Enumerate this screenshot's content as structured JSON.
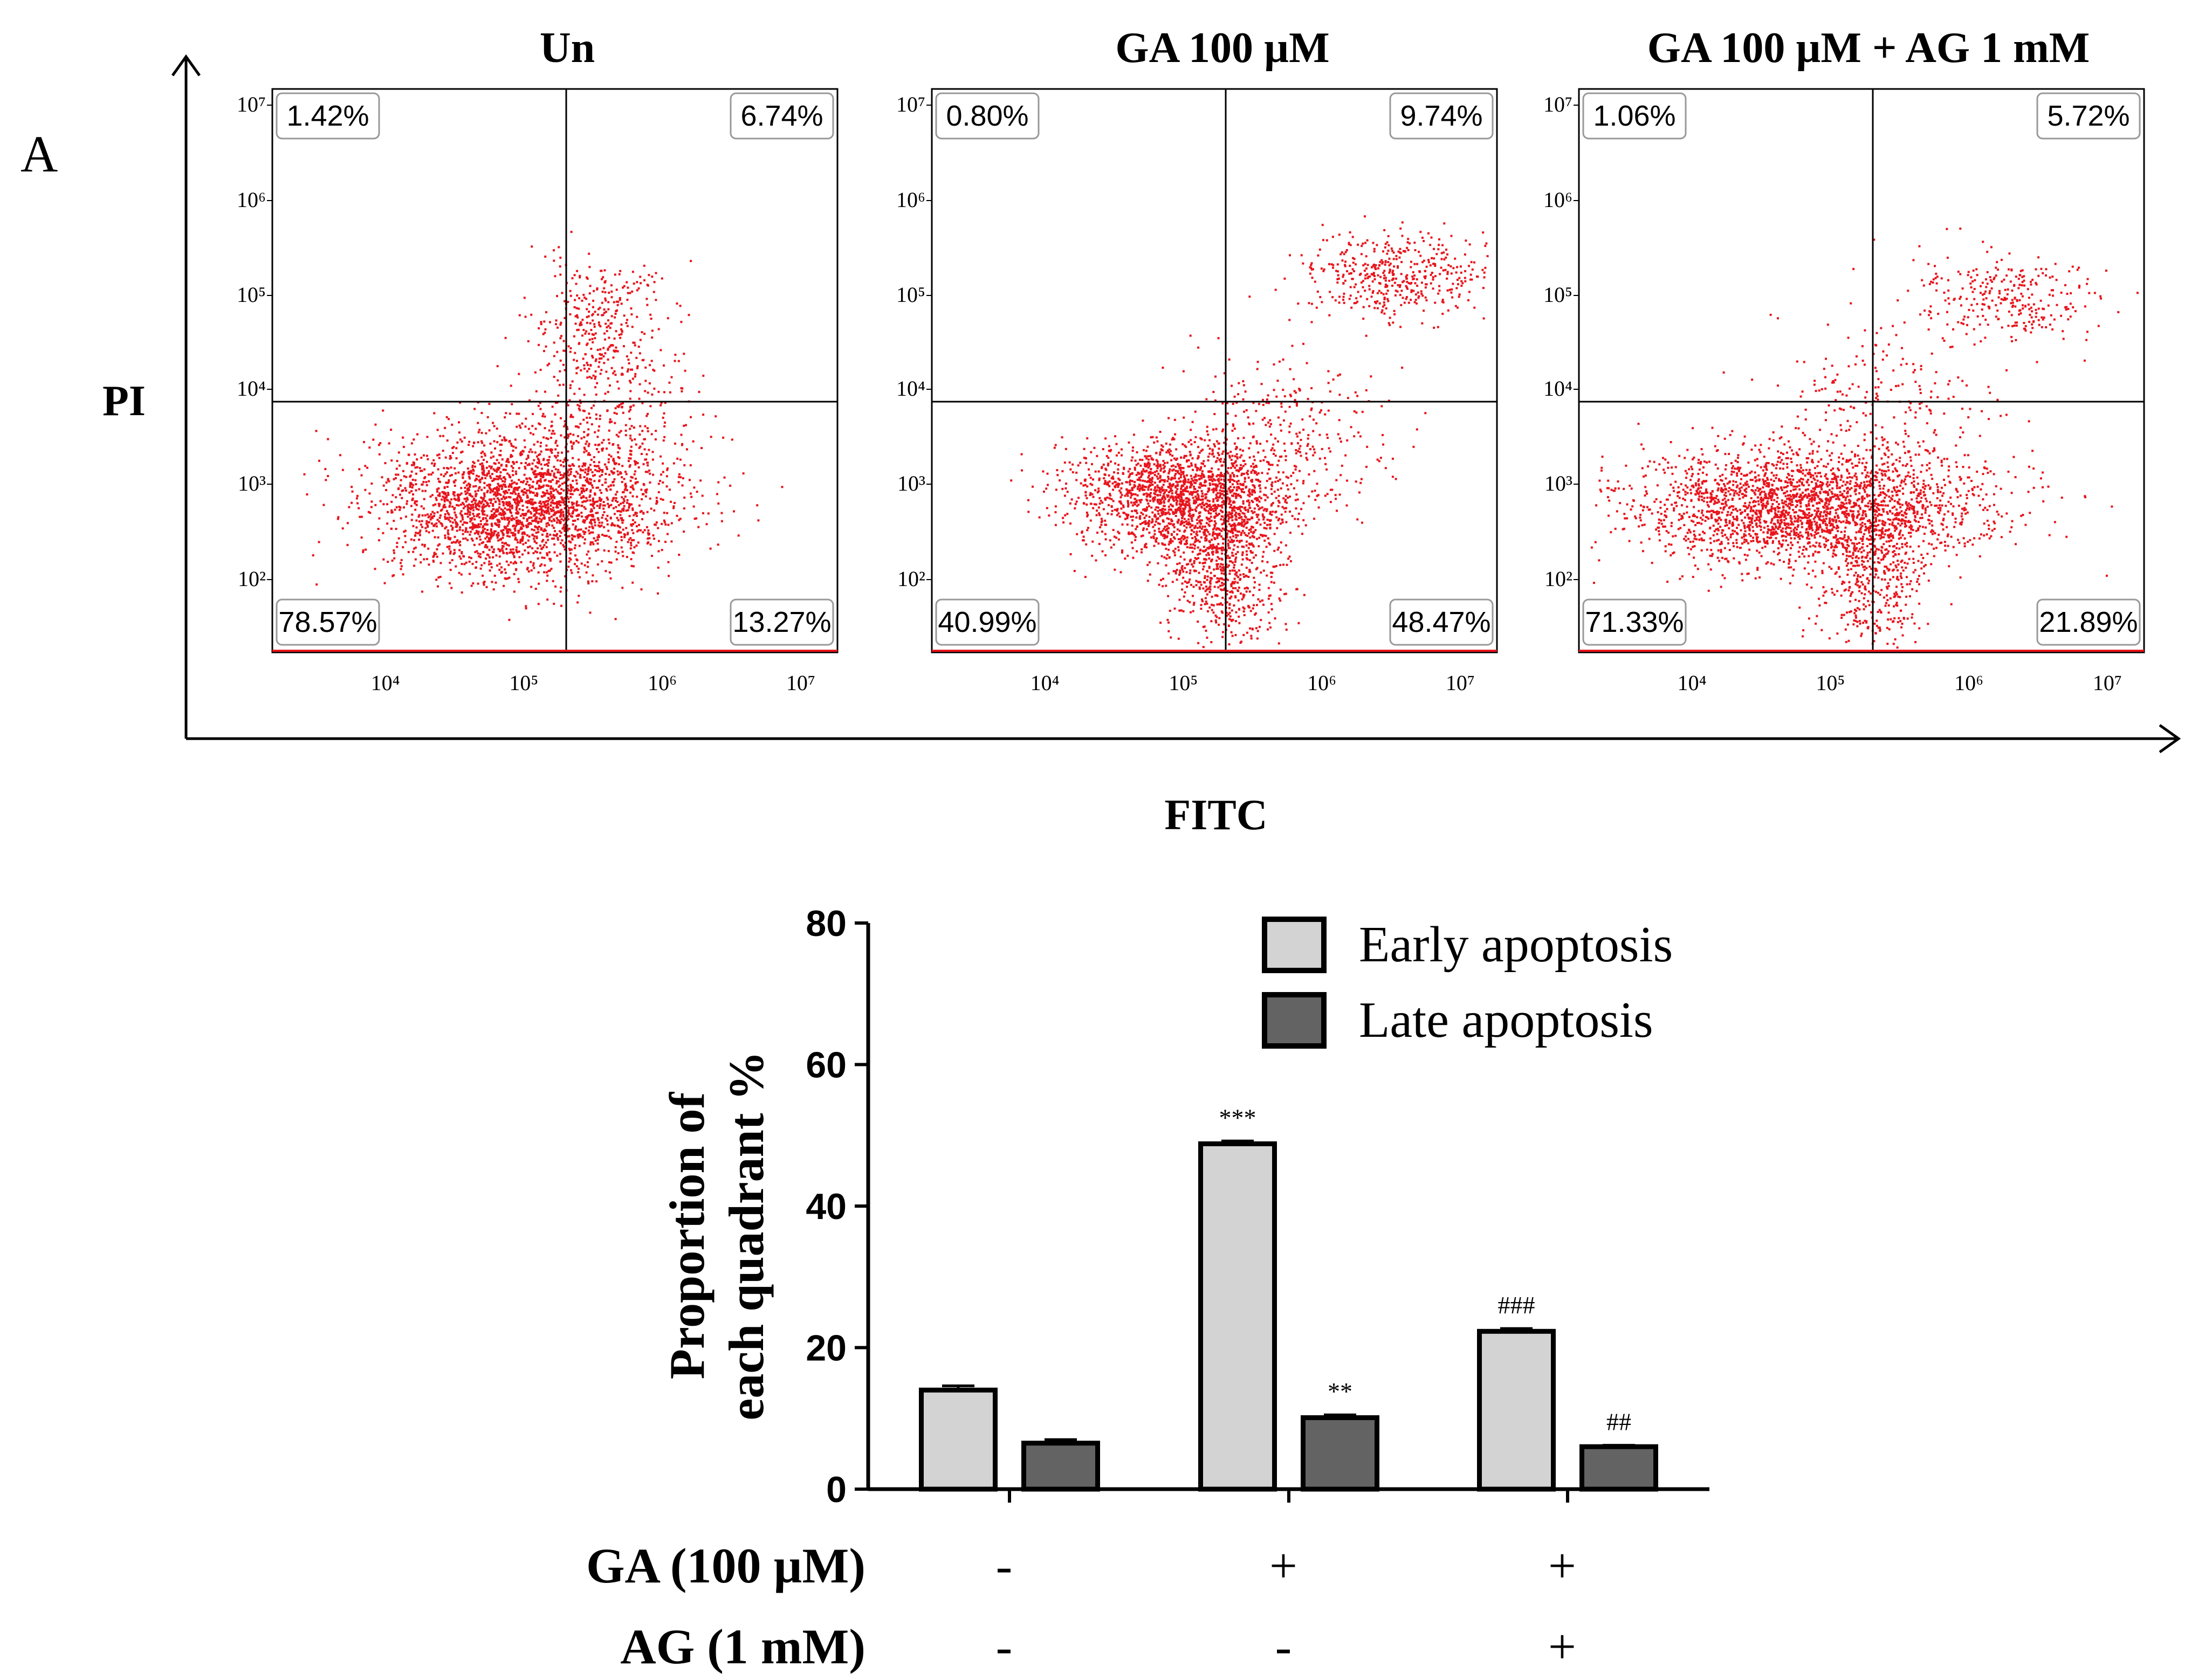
{
  "panel_letter": "A",
  "flow": {
    "y_axis_label": "PI",
    "x_axis_label": "FITC",
    "tick_labels": [
      "10⁴",
      "10⁵",
      "10⁶",
      "10⁷"
    ],
    "y_tick_labels": [
      "10²",
      "10³",
      "10⁴",
      "10⁵",
      "10⁶",
      "10⁷"
    ],
    "dot_color": "#e8141c",
    "panels": [
      {
        "title": "Un",
        "quadrants": {
          "ul": "1.42%",
          "ur": "6.74%",
          "ll": "78.57%",
          "lr": "13.27%"
        }
      },
      {
        "title": "GA 100 µM",
        "quadrants": {
          "ul": "0.80%",
          "ur": "9.74%",
          "ll": "40.99%",
          "lr": "48.47%"
        }
      },
      {
        "title": "GA 100 µM + AG 1 mM",
        "quadrants": {
          "ul": "1.06%",
          "ur": "5.72%",
          "ll": "71.33%",
          "lr": "21.89%"
        }
      }
    ]
  },
  "chart_data": {
    "type": "bar",
    "title": "",
    "xlabel": "",
    "ylabel": "Proportion of each quadrant %",
    "ylabel_lines": [
      "Proportion of",
      "each quadrant %"
    ],
    "ylim": [
      0,
      80
    ],
    "yticks": [
      0,
      20,
      40,
      60,
      80
    ],
    "categories": [
      "Un",
      "GA 100 µM",
      "GA 100 µM + AG 1 mM"
    ],
    "series": [
      {
        "name": "Early apoptosis",
        "color": "#d3d3d3",
        "values": [
          14.0,
          48.8,
          22.3
        ],
        "errors": [
          0.6,
          0.4,
          0.4
        ],
        "annotations": [
          "",
          "***",
          "###"
        ]
      },
      {
        "name": "Late apoptosis",
        "color": "#636363",
        "values": [
          6.5,
          10.1,
          6.0
        ],
        "errors": [
          0.5,
          0.4,
          0.2
        ],
        "annotations": [
          "",
          "**",
          "##"
        ]
      }
    ],
    "treatments": [
      {
        "label": "GA  (100 µM)",
        "values": [
          "-",
          "+",
          "+"
        ]
      },
      {
        "label": "AG  (1 mM)",
        "values": [
          "-",
          "-",
          "+"
        ]
      }
    ]
  }
}
